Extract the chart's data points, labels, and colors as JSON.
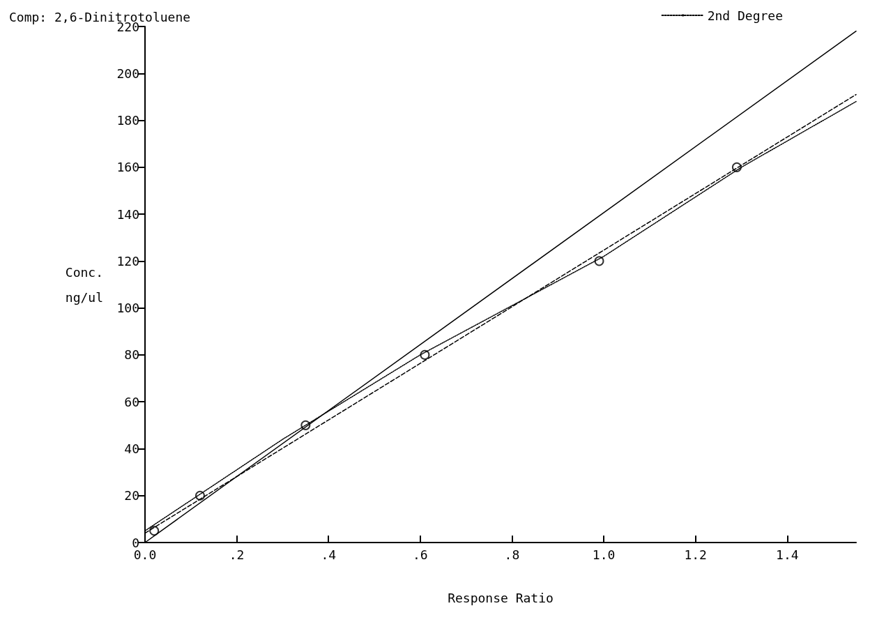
{
  "chart_data": {
    "type": "line",
    "title": "Comp: 2,6-Dinitrotoluene",
    "xlabel": "Response Ratio",
    "ylabel": "Conc.\nng/ul",
    "xlim": [
      0,
      1.55
    ],
    "xticks": [
      {
        "value": 0,
        "label": "0.0"
      },
      {
        "value": 0.2,
        "label": ".2"
      },
      {
        "value": 0.4,
        "label": ".4"
      },
      {
        "value": 0.6,
        "label": ".6"
      },
      {
        "value": 0.8,
        "label": ".8"
      },
      {
        "value": 1.0,
        "label": "1.0"
      },
      {
        "value": 1.2,
        "label": "1.2"
      },
      {
        "value": 1.4,
        "label": "1.4"
      }
    ],
    "ylim": [
      0,
      220
    ],
    "yticks": [
      0,
      20,
      40,
      60,
      80,
      100,
      120,
      140,
      160,
      180,
      200,
      220
    ],
    "grid": false,
    "legend": "top right",
    "series": [
      {
        "color": "#000000",
        "line_style": "solid",
        "marker": "none",
        "x": [
          0,
          1.55
        ],
        "values": [
          0,
          218
        ]
      },
      {
        "color": "#000000",
        "line_style": "dashed",
        "marker": "none",
        "x": [
          0,
          1.55
        ],
        "values": [
          4,
          191
        ]
      },
      {
        "name": "2nd Degree",
        "color": "#000000",
        "line_style": "dotted",
        "marker": "none",
        "x": [
          0,
          0.3,
          0.6,
          1.0,
          1.3,
          1.55
        ],
        "values": [
          5,
          44,
          80,
          122,
          160,
          188
        ]
      },
      {
        "type": "scatter",
        "color": "#000000",
        "marker": "circle",
        "x": [
          0.02,
          0.12,
          0.35,
          0.61,
          0.99,
          1.29
        ],
        "values": [
          5,
          20,
          50,
          80,
          120,
          160
        ]
      }
    ]
  }
}
